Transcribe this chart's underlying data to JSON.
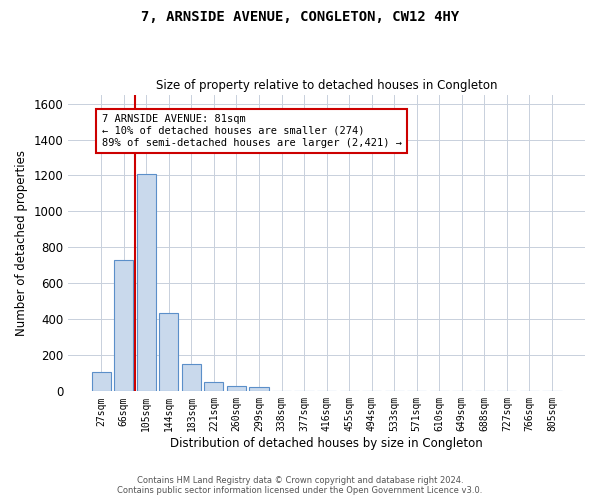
{
  "title": "7, ARNSIDE AVENUE, CONGLETON, CW12 4HY",
  "subtitle": "Size of property relative to detached houses in Congleton",
  "xlabel": "Distribution of detached houses by size in Congleton",
  "ylabel": "Number of detached properties",
  "bar_color": "#c9d9ec",
  "bar_edge_color": "#5b8fc9",
  "grid_color": "#c8d0dc",
  "background_color": "#ffffff",
  "categories": [
    "27sqm",
    "66sqm",
    "105sqm",
    "144sqm",
    "183sqm",
    "221sqm",
    "260sqm",
    "299sqm",
    "338sqm",
    "377sqm",
    "416sqm",
    "455sqm",
    "494sqm",
    "533sqm",
    "571sqm",
    "610sqm",
    "649sqm",
    "688sqm",
    "727sqm",
    "766sqm",
    "805sqm"
  ],
  "values": [
    105,
    730,
    1210,
    435,
    150,
    50,
    30,
    25,
    0,
    0,
    0,
    0,
    0,
    0,
    0,
    0,
    0,
    0,
    0,
    0,
    0
  ],
  "ylim": [
    0,
    1650
  ],
  "yticks": [
    0,
    200,
    400,
    600,
    800,
    1000,
    1200,
    1400,
    1600
  ],
  "annotation_text": "7 ARNSIDE AVENUE: 81sqm\n← 10% of detached houses are smaller (274)\n89% of semi-detached houses are larger (2,421) →",
  "annotation_box_color": "#ffffff",
  "annotation_box_edge": "#cc0000",
  "property_line_color": "#cc0000",
  "footer_line1": "Contains HM Land Registry data © Crown copyright and database right 2024.",
  "footer_line2": "Contains public sector information licensed under the Open Government Licence v3.0."
}
